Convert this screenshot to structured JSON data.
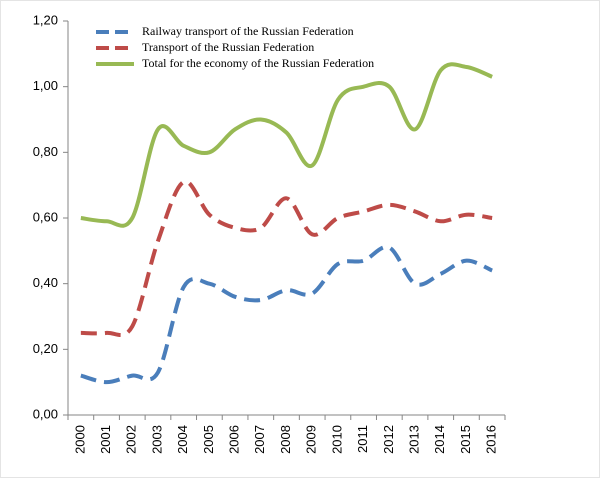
{
  "chart_data": {
    "type": "line",
    "categories": [
      "2000",
      "2001",
      "2002",
      "2003",
      "2004",
      "2005",
      "2006",
      "2007",
      "2008",
      "2009",
      "2010",
      "2011",
      "2012",
      "2013",
      "2014",
      "2015",
      "2016"
    ],
    "series": [
      {
        "name": "Railway transport of the Russian Federation",
        "color": "#4a7ebb",
        "style": "dashed",
        "values": [
          0.12,
          0.1,
          0.12,
          0.13,
          0.39,
          0.4,
          0.36,
          0.35,
          0.38,
          0.37,
          0.46,
          0.47,
          0.51,
          0.4,
          0.43,
          0.47,
          0.44
        ]
      },
      {
        "name": "Transport of the Russian Federation",
        "color": "#be4b48",
        "style": "dashed",
        "values": [
          0.25,
          0.25,
          0.27,
          0.53,
          0.71,
          0.61,
          0.57,
          0.57,
          0.66,
          0.55,
          0.6,
          0.62,
          0.64,
          0.62,
          0.59,
          0.61,
          0.6
        ]
      },
      {
        "name": "Total for the economy of the Russian Federation",
        "color": "#98b954",
        "style": "solid",
        "values": [
          0.6,
          0.59,
          0.6,
          0.87,
          0.82,
          0.8,
          0.87,
          0.9,
          0.86,
          0.76,
          0.96,
          1.0,
          1.0,
          0.87,
          1.05,
          1.06,
          1.03
        ]
      }
    ],
    "ylim": [
      0,
      1.2
    ],
    "yticks": [
      {
        "value": 0,
        "label": "0,00"
      },
      {
        "value": 0.2,
        "label": "0,20"
      },
      {
        "value": 0.4,
        "label": "0,40"
      },
      {
        "value": 0.6,
        "label": "0,60"
      },
      {
        "value": 0.8,
        "label": "0,80"
      },
      {
        "value": 1.0,
        "label": "1,00"
      },
      {
        "value": 1.2,
        "label": "1,20"
      }
    ],
    "smooth": true,
    "legend": "upper left"
  }
}
